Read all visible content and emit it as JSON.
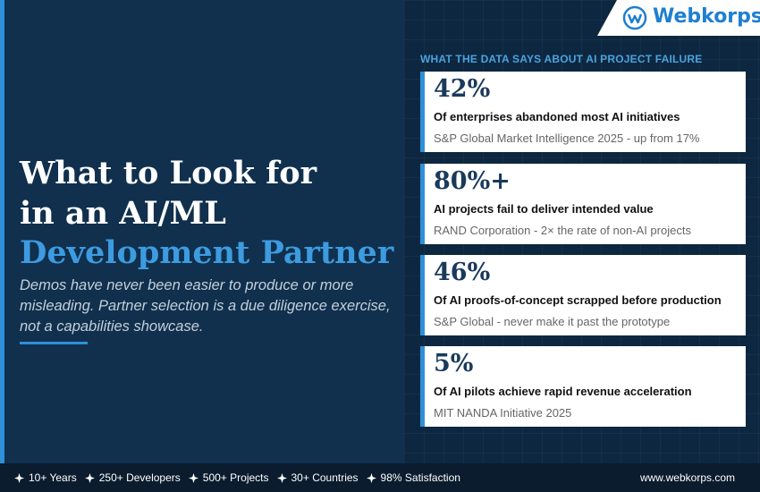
{
  "brand": "Webkorps",
  "hero": {
    "title_lines": [
      "What to Look for",
      "in an AI/ML"
    ],
    "title_highlight": "Development Partner",
    "subtitle": "Demos have never been easier to produce or more misleading. Partner selection is a due diligence exercise, not a capabilities showcase."
  },
  "panel": {
    "heading": "WHAT THE DATA SAYS ABOUT AI PROJECT FAILURE",
    "cards": [
      {
        "stat": "42%",
        "headline": "Of enterprises abandoned most AI initiatives",
        "source": "S&P Global Market Intelligence 2025 - up from 17%"
      },
      {
        "stat": "80%+",
        "headline": "AI projects fail to deliver intended value",
        "source": "RAND Corporation - 2× the rate of non-AI projects"
      },
      {
        "stat": "46%",
        "headline": "Of AI proofs-of-concept scrapped before production",
        "source": "S&P Global - never make it past the prototype"
      },
      {
        "stat": "5%",
        "headline": "Of AI pilots achieve rapid revenue acceleration",
        "source": "MIT NANDA Initiative 2025"
      }
    ]
  },
  "footer": {
    "highlights": [
      "10+ Years",
      "250+ Developers",
      "500+ Projects",
      "30+ Countries",
      "98% Satisfaction"
    ],
    "website": "www.webkorps.com"
  }
}
